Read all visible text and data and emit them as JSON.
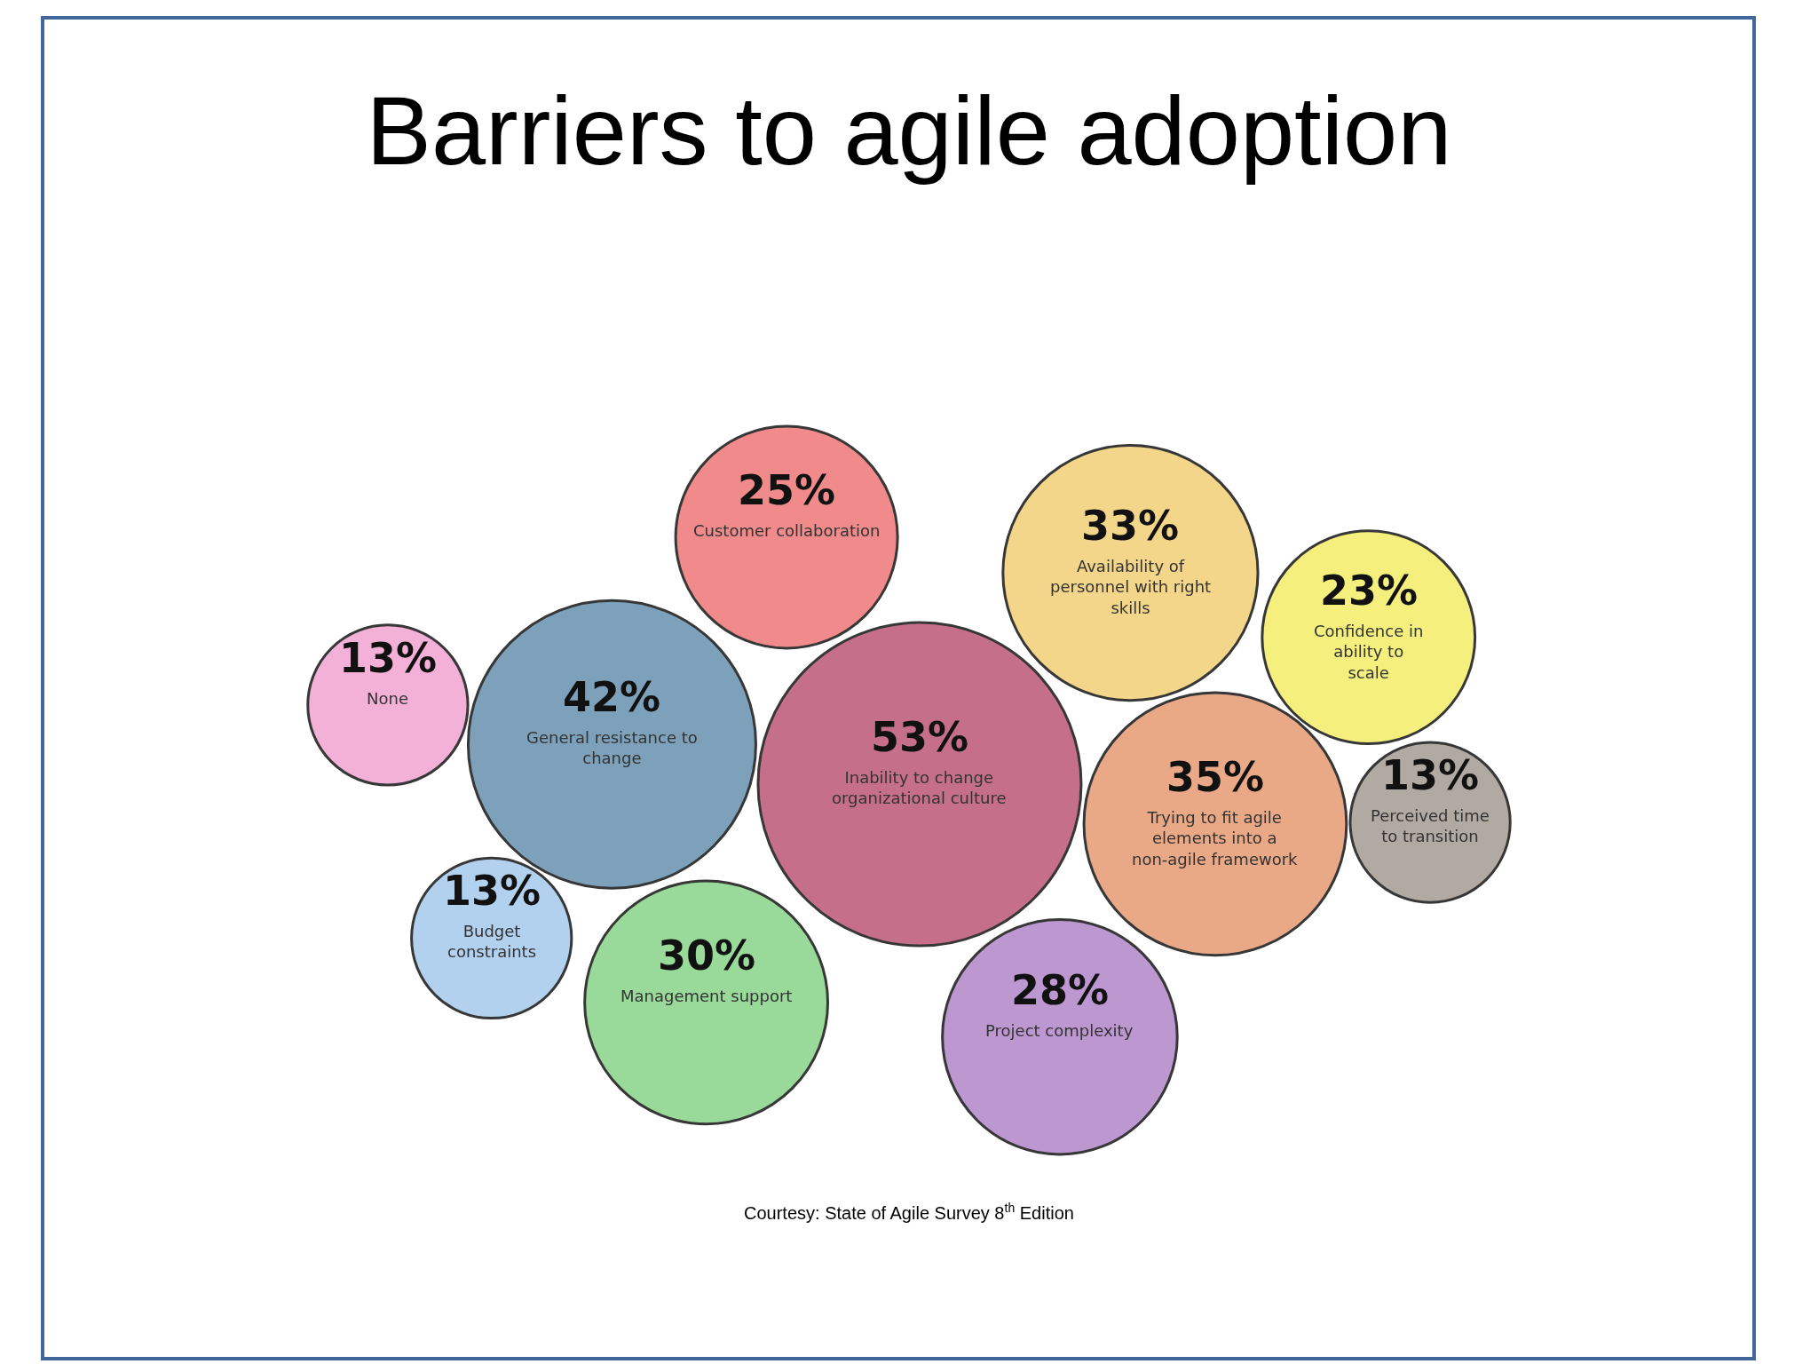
{
  "chart_data": {
    "type": "other",
    "title": "Barriers to agile adoption",
    "categories": [
      "Inability to change organizational culture",
      "General resistance to change",
      "Trying to fit agile elements into a non-agile framework",
      "Availability of personnel with right skills",
      "Management support",
      "Project complexity",
      "Customer collaboration",
      "Confidence in ability to scale",
      "Budget constraints",
      "Perceived time to transition",
      "None"
    ],
    "values": [
      53,
      42,
      35,
      33,
      30,
      28,
      25,
      23,
      13,
      13,
      13
    ],
    "value_labels": [
      "53%",
      "42%",
      "35%",
      "33%",
      "30%",
      "28%",
      "25%",
      "23%",
      "13%",
      "13%",
      "13%"
    ],
    "colors": [
      "#c0607f",
      "#6f97b3",
      "#e8a07a",
      "#f3d27e",
      "#8fd58f",
      "#b58ccc",
      "#f07f7f",
      "#f5ee70",
      "#a9cdee",
      "#a9a199",
      "#f3a9d3"
    ],
    "annotations": [
      "Courtesy: State of Agile Survey 8$^{th}$ Edition"
    ]
  }
}
